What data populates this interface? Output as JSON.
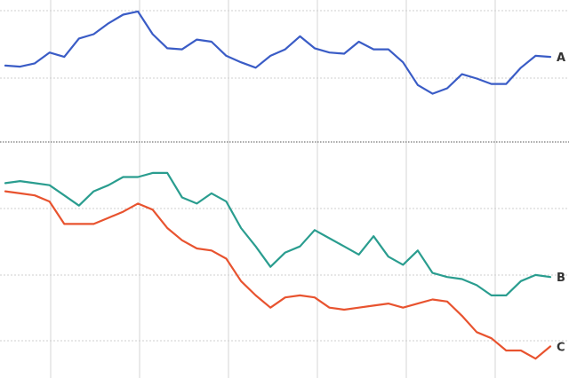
{
  "chart_data": {
    "type": "line",
    "x": [
      0,
      1,
      2,
      3,
      4,
      5,
      6,
      7,
      8,
      9,
      10,
      11,
      12,
      13,
      14,
      15,
      16,
      17,
      18,
      19,
      20,
      21,
      22,
      23,
      24,
      25,
      26,
      27,
      28,
      29,
      30,
      31,
      32,
      33,
      34,
      35,
      36,
      37
    ],
    "panels": [
      {
        "id": "upper",
        "ylim": [
          0,
          100
        ],
        "series": [
          {
            "name": "A",
            "color": "#3a5cc6",
            "values": [
              46,
              45,
              48,
              58,
              54,
              71,
              75,
              85,
              93,
              96,
              75,
              62,
              61,
              70,
              68,
              55,
              49,
              44,
              55,
              61,
              73,
              62,
              58,
              57,
              68,
              61,
              61,
              49,
              28,
              20,
              25,
              38,
              34,
              29,
              29,
              44,
              55,
              54
            ]
          }
        ]
      },
      {
        "id": "lower",
        "ylim": [
          0,
          100
        ],
        "series": [
          {
            "name": "B",
            "color": "#2a9d8f",
            "values": [
              92,
              93,
              92,
              91,
              86,
              81,
              88,
              91,
              95,
              95,
              97,
              97,
              85,
              82,
              87,
              83,
              70,
              61,
              51,
              58,
              61,
              69,
              65,
              61,
              57,
              66,
              56,
              52,
              59,
              48,
              46,
              45,
              42,
              37,
              37,
              44,
              47,
              46
            ]
          },
          {
            "name": "C",
            "color": "#e8532f",
            "values": [
              88,
              87,
              86,
              83,
              72,
              72,
              72,
              75,
              78,
              82,
              79,
              70,
              64,
              60,
              59,
              55,
              44,
              37,
              31,
              36,
              37,
              36,
              31,
              30,
              31,
              32,
              33,
              31,
              33,
              35,
              34,
              27,
              19,
              16,
              10,
              10,
              6,
              12
            ]
          }
        ]
      }
    ],
    "grid": true,
    "legend": "line-end labels",
    "title": "",
    "xlabel": "",
    "ylabel": ""
  }
}
